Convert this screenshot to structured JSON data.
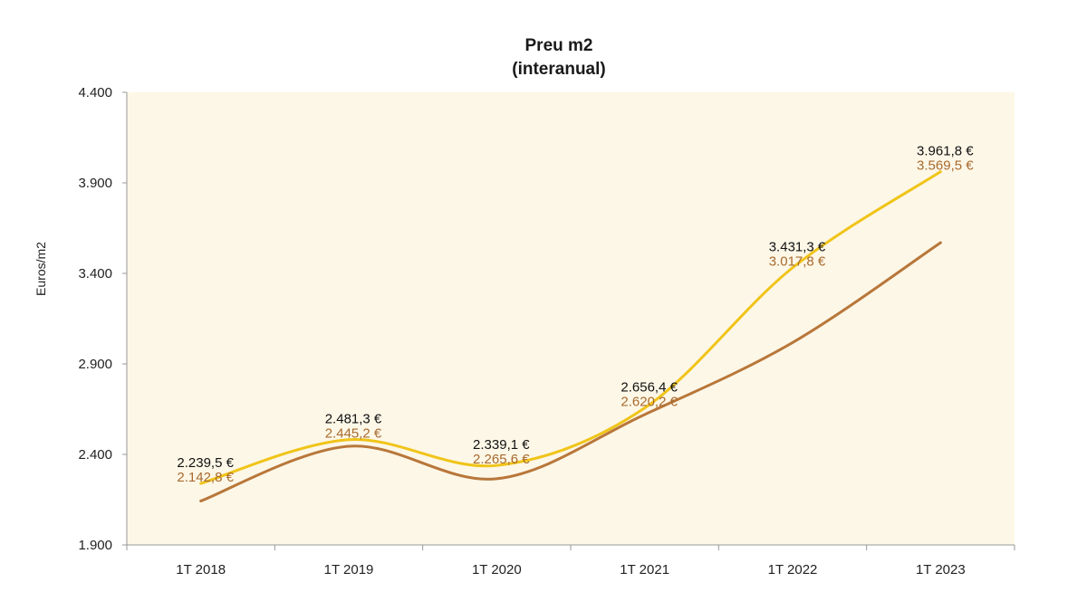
{
  "chart_data": {
    "type": "line",
    "title": "Preu m2",
    "subtitle": "(interanual)",
    "ylabel": "Euros/m2",
    "xlabel": "",
    "categories": [
      "1T 2018",
      "1T 2019",
      "1T 2020",
      "1T 2021",
      "1T 2022",
      "1T 2023"
    ],
    "ylim": [
      1900,
      4400
    ],
    "yticks": [
      1900,
      2400,
      2900,
      3400,
      3900,
      4400
    ],
    "ytick_labels": [
      "1.900",
      "2.400",
      "2.900",
      "3.400",
      "3.900",
      "4.400"
    ],
    "grid": false,
    "plot_background": "#fdf7e7",
    "series": [
      {
        "color": "#f0c419",
        "values": [
          2239.5,
          2481.3,
          2339.1,
          2656.4,
          3431.3,
          3961.8
        ],
        "labels": [
          "2.239,5 €",
          "2.481,3 €",
          "2.339,1 €",
          "2.656,4 €",
          "3.431,3 €",
          "3.961,8 €"
        ],
        "label_color": "#111111"
      },
      {
        "color": "#b8773a",
        "values": [
          2142.8,
          2445.2,
          2265.6,
          2620.2,
          3017.8,
          3569.5
        ],
        "labels": [
          "2.142,8 €",
          "2.445,2 €",
          "2.265,6 €",
          "2.620,2 €",
          "3.017,8 €",
          "3.569,5 €"
        ],
        "label_color": "#a86a2e"
      }
    ]
  }
}
